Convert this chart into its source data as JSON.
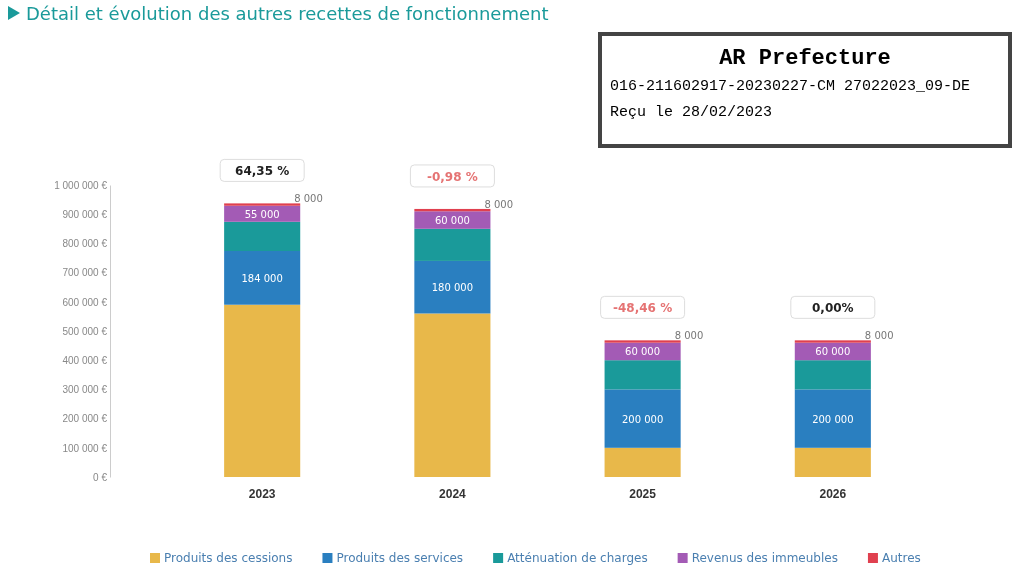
{
  "chart_data": {
    "type": "bar",
    "stacked": true,
    "title": "Détail et évolution des autres recettes de fonctionnement",
    "categories": [
      "2023",
      "2024",
      "2025",
      "2026"
    ],
    "series": [
      {
        "name": "Produits des cessions",
        "color": "#e8b84a",
        "values": [
          590000,
          560000,
          100000,
          100000
        ],
        "value_labels": [
          null,
          null,
          null,
          null
        ]
      },
      {
        "name": "Produits des services",
        "color": "#2a7fc0",
        "values": [
          184000,
          180000,
          200000,
          200000
        ],
        "value_labels": [
          "184 000",
          "180 000",
          "200 000",
          "200 000"
        ]
      },
      {
        "name": "Atténuation de charges",
        "color": "#1a9a9a",
        "values": [
          100000,
          110000,
          100000,
          100000
        ],
        "value_labels": [
          null,
          null,
          null,
          null
        ]
      },
      {
        "name": "Revenus des immeubles",
        "color": "#a35bb5",
        "values": [
          55000,
          60000,
          60000,
          60000
        ],
        "value_labels": [
          "55 000",
          "60 000",
          "60 000",
          "60 000"
        ]
      },
      {
        "name": "Autres",
        "color": "#e0404f",
        "values": [
          8000,
          8000,
          8000,
          8000
        ],
        "value_labels": [
          "8 000",
          "8 000",
          "8 000",
          "8 000"
        ]
      }
    ],
    "ylim": [
      0,
      1000000
    ],
    "yticks": [
      {
        "value": 0,
        "label": "0 €"
      },
      {
        "value": 100000,
        "label": "100 000 €"
      },
      {
        "value": 200000,
        "label": "200 000 €"
      },
      {
        "value": 300000,
        "label": "300 000 €"
      },
      {
        "value": 400000,
        "label": "400 000 €"
      },
      {
        "value": 500000,
        "label": "500 000 €"
      },
      {
        "value": 600000,
        "label": "600 000 €"
      },
      {
        "value": 700000,
        "label": "700 000 €"
      },
      {
        "value": 800000,
        "label": "800 000 €"
      },
      {
        "value": 900000,
        "label": "900 000 €"
      },
      {
        "value": 1000000,
        "label": "1 000 000 €"
      }
    ],
    "legend": "bottom",
    "annotations": [
      {
        "text": "64,35 %",
        "x": "2023",
        "y": 937000
      },
      {
        "text": "-0,98 %",
        "x": "2024",
        "y": 918000
      },
      {
        "text": "-48,46 %",
        "x": "2025",
        "y": 468000
      },
      {
        "text": "0,00%",
        "x": "2026",
        "y": 468000
      },
      "AR Prefecture",
      "016-211602917-20230227-CM 27022023_09-DE",
      "Reçu le 28/02/2023"
    ]
  }
}
